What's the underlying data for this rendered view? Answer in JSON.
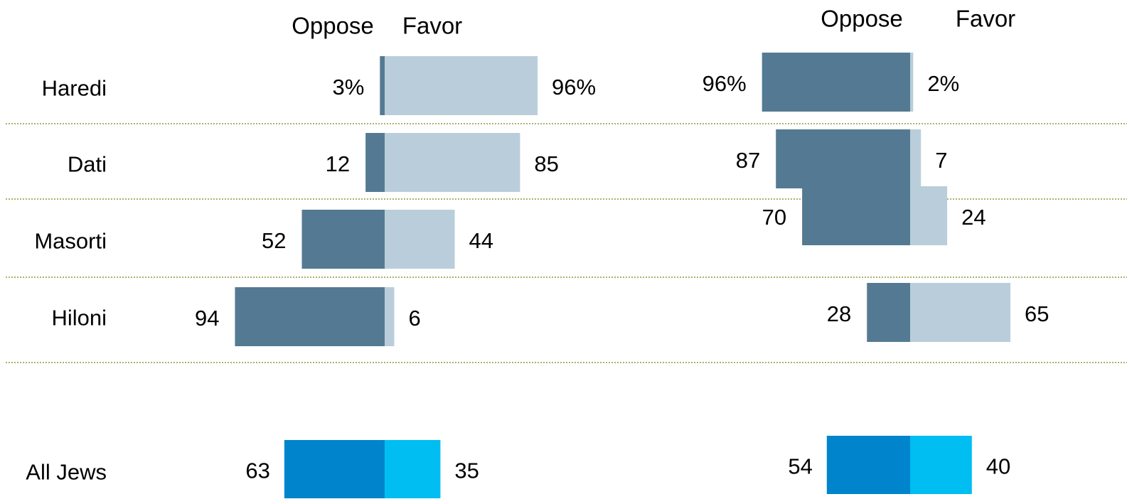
{
  "chart_data": [
    {
      "type": "bar",
      "stacked": "diverging",
      "header": {
        "oppose": "Oppose",
        "favor": "Favor"
      },
      "categories": [
        "Haredi",
        "Dati",
        "Masorti",
        "Hiloni"
      ],
      "series": [
        {
          "name": "Oppose",
          "values": [
            3,
            12,
            52,
            94
          ],
          "labels": [
            "3%",
            "12",
            "52",
            "94"
          ]
        },
        {
          "name": "Favor",
          "values": [
            96,
            85,
            44,
            6
          ],
          "labels": [
            "96%",
            "85",
            "44",
            "6"
          ]
        }
      ],
      "total": {
        "category": "All Jews",
        "oppose": 63,
        "favor": 35,
        "oppose_label": "63",
        "favor_label": "35"
      }
    },
    {
      "type": "bar",
      "stacked": "diverging",
      "header": {
        "oppose": "Oppose",
        "favor": "Favor"
      },
      "categories": [
        "Haredi",
        "Dati",
        "Masorti",
        "Hiloni"
      ],
      "series": [
        {
          "name": "Oppose",
          "values": [
            96,
            87,
            70,
            28
          ],
          "labels": [
            "96%",
            "87",
            "70",
            "28"
          ]
        },
        {
          "name": "Favor",
          "values": [
            2,
            7,
            24,
            65
          ],
          "labels": [
            "2%",
            "7",
            "24",
            "65"
          ]
        }
      ],
      "total": {
        "category": "All Jews",
        "oppose": 54,
        "favor": 40,
        "oppose_label": "54",
        "favor_label": "40"
      }
    }
  ],
  "colors": {
    "oppose": "#547a93",
    "favor": "#b9ceda",
    "total_oppose": "#0084cc",
    "total_favor": "#00bdf2",
    "divider": "#8a9a3c"
  }
}
